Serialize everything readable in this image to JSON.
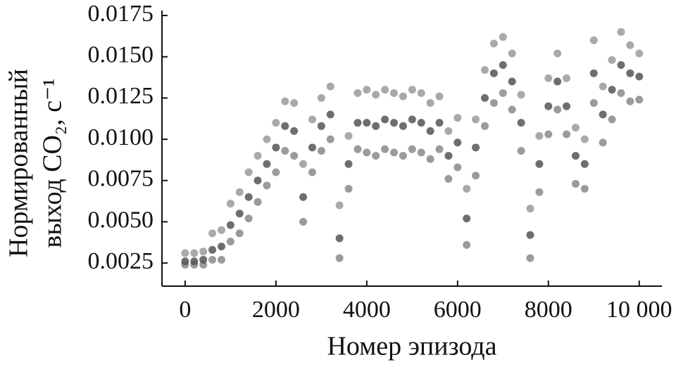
{
  "chart_data": {
    "type": "scatter",
    "xlabel": "Номер эпизода",
    "ylabel": [
      "Нормированный",
      "выход CO₂, с⁻¹"
    ],
    "xlim": [
      -510,
      10500
    ],
    "ylim": [
      0.0011,
      0.0178
    ],
    "xticks": [
      0,
      2000,
      4000,
      6000,
      8000,
      {
        "value": 10000,
        "label": "10 000"
      }
    ],
    "yticks": [
      0.0025,
      {
        "value": 0.005,
        "label": "0.0050"
      },
      0.0075,
      {
        "value": 0.01,
        "label": "0.0100"
      },
      0.0125,
      {
        "value": 0.015,
        "label": "0.0150"
      },
      0.0175
    ],
    "x": [
      0,
      200,
      400,
      600,
      800,
      1000,
      1200,
      1400,
      1600,
      1800,
      2000,
      2200,
      2400,
      2600,
      2800,
      3000,
      3200,
      3400,
      3600,
      3800,
      4000,
      4200,
      4400,
      4600,
      4800,
      5000,
      5200,
      5400,
      5600,
      5800,
      6000,
      6200,
      6400,
      6600,
      6800,
      7000,
      7200,
      7400,
      7600,
      7800,
      8000,
      8200,
      8400,
      8600,
      8800,
      9000,
      9200,
      9400,
      9600,
      9800,
      10000
    ],
    "series": [
      {
        "color": "#9a9a9a",
        "values": [
          0.0031,
          0.0031,
          0.0032,
          0.0043,
          0.0045,
          0.0061,
          0.0068,
          0.008,
          0.009,
          0.01,
          0.011,
          0.0123,
          0.0122,
          0.0085,
          0.0112,
          0.0125,
          0.0132,
          0.006,
          0.0102,
          0.0128,
          0.013,
          0.0127,
          0.013,
          0.0128,
          0.0126,
          0.013,
          0.0128,
          0.0122,
          0.0126,
          0.0105,
          0.0113,
          0.007,
          0.0112,
          0.0142,
          0.0158,
          0.0162,
          0.0152,
          0.0127,
          0.0058,
          0.0102,
          0.0137,
          0.0152,
          0.0137,
          0.0107,
          0.01,
          0.016,
          0.0132,
          0.0148,
          0.0165,
          0.0157,
          0.0152
        ]
      },
      {
        "color": "#8a8a8a",
        "values": [
          0.0024,
          0.0024,
          0.0024,
          0.0027,
          0.0027,
          0.0038,
          0.0043,
          0.0052,
          0.0062,
          0.0072,
          0.008,
          0.0093,
          0.009,
          0.005,
          0.008,
          0.0093,
          0.01,
          0.0028,
          0.007,
          0.0094,
          0.0092,
          0.009,
          0.0094,
          0.0092,
          0.009,
          0.0094,
          0.0092,
          0.0088,
          0.0094,
          0.0076,
          0.0083,
          0.0036,
          0.0078,
          0.0108,
          0.0122,
          0.0128,
          0.0118,
          0.0093,
          0.0028,
          0.0068,
          0.0103,
          0.0118,
          0.0103,
          0.0073,
          0.007,
          0.0122,
          0.0098,
          0.0112,
          0.0128,
          0.0123,
          0.0124
        ]
      },
      {
        "color": "#555555",
        "values": [
          0.0026,
          0.0026,
          0.0027,
          0.0033,
          0.0035,
          0.0048,
          0.0055,
          0.0065,
          0.0075,
          0.0085,
          0.0095,
          0.0108,
          0.0105,
          0.0065,
          0.0095,
          0.0108,
          0.0115,
          0.004,
          0.0085,
          0.011,
          0.011,
          0.0108,
          0.0112,
          0.011,
          0.0108,
          0.0112,
          0.011,
          0.0105,
          0.011,
          0.009,
          0.0098,
          0.0052,
          0.0095,
          0.0125,
          0.014,
          0.0145,
          0.0135,
          0.011,
          0.0042,
          0.0085,
          0.012,
          0.0135,
          0.012,
          0.009,
          0.0085,
          0.014,
          0.0115,
          0.013,
          0.0145,
          0.014,
          0.0138
        ]
      }
    ]
  }
}
